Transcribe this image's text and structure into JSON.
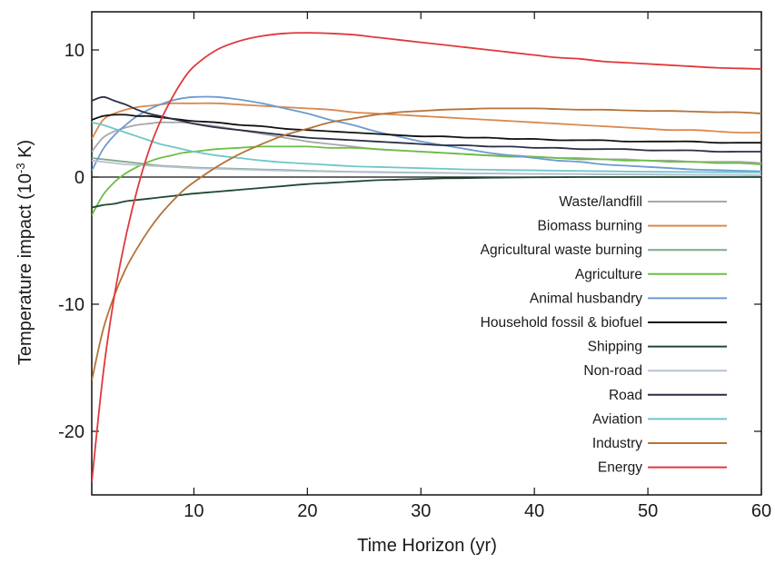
{
  "chart_data": {
    "type": "line",
    "xlabel": "Time Horizon (yr)",
    "ylabel_main": "Temperature impact (10",
    "ylabel_exp": "-3",
    "ylabel_tail": " K)",
    "xlim": [
      1,
      60
    ],
    "ylim": [
      -25,
      13
    ],
    "x_ticks": [
      10,
      20,
      30,
      40,
      50,
      60
    ],
    "y_ticks": [
      -20,
      -10,
      0,
      10
    ],
    "zero_line": true,
    "legend_position": "bottom-right",
    "x": [
      1,
      2,
      3,
      4,
      5,
      6,
      7,
      8,
      9,
      10,
      12,
      14,
      16,
      18,
      20,
      22,
      24,
      26,
      28,
      30,
      32,
      34,
      36,
      38,
      40,
      42,
      44,
      46,
      48,
      50,
      52,
      54,
      56,
      58,
      60
    ],
    "series": [
      {
        "name": "Waste/landfill",
        "color": "#a8a8a8",
        "values": [
          2.0,
          3.1,
          3.6,
          3.9,
          4.1,
          4.2,
          4.3,
          4.3,
          4.3,
          4.2,
          4.0,
          3.7,
          3.4,
          3.1,
          2.8,
          2.6,
          2.4,
          2.2,
          2.1,
          2.0,
          1.9,
          1.8,
          1.7,
          1.7,
          1.6,
          1.5,
          1.5,
          1.4,
          1.4,
          1.3,
          1.3,
          1.2,
          1.2,
          1.2,
          1.1
        ]
      },
      {
        "name": "Biomass burning",
        "color": "#d9894f",
        "values": [
          3.0,
          4.5,
          5.0,
          5.3,
          5.5,
          5.6,
          5.7,
          5.8,
          5.8,
          5.8,
          5.8,
          5.7,
          5.6,
          5.5,
          5.4,
          5.3,
          5.1,
          5.0,
          4.9,
          4.8,
          4.7,
          4.6,
          4.5,
          4.4,
          4.3,
          4.2,
          4.1,
          4.0,
          3.9,
          3.8,
          3.7,
          3.7,
          3.6,
          3.5,
          3.5
        ]
      },
      {
        "name": "Agricultural waste burning",
        "color": "#7fa888",
        "values": [
          1.5,
          1.4,
          1.3,
          1.2,
          1.1,
          1.0,
          0.9,
          0.85,
          0.8,
          0.75,
          0.7,
          0.65,
          0.6,
          0.55,
          0.5,
          0.45,
          0.42,
          0.4,
          0.37,
          0.35,
          0.33,
          0.3,
          0.28,
          0.27,
          0.25,
          0.24,
          0.23,
          0.22,
          0.21,
          0.2,
          0.19,
          0.18,
          0.17,
          0.16,
          0.15
        ]
      },
      {
        "name": "Agriculture",
        "color": "#6cbe45",
        "values": [
          -3.0,
          -1.4,
          -0.4,
          0.3,
          0.8,
          1.2,
          1.5,
          1.7,
          1.9,
          2.0,
          2.2,
          2.3,
          2.4,
          2.4,
          2.4,
          2.3,
          2.3,
          2.2,
          2.1,
          2.0,
          1.9,
          1.8,
          1.7,
          1.6,
          1.6,
          1.5,
          1.4,
          1.4,
          1.3,
          1.3,
          1.2,
          1.2,
          1.1,
          1.1,
          1.0
        ]
      },
      {
        "name": "Animal husbandry",
        "color": "#6b9bd1",
        "values": [
          0.5,
          2.2,
          3.3,
          4.1,
          4.8,
          5.3,
          5.7,
          6.0,
          6.2,
          6.3,
          6.3,
          6.1,
          5.8,
          5.4,
          5.0,
          4.5,
          4.1,
          3.6,
          3.2,
          2.8,
          2.5,
          2.2,
          1.9,
          1.7,
          1.5,
          1.3,
          1.2,
          1.0,
          0.9,
          0.8,
          0.7,
          0.6,
          0.55,
          0.5,
          0.45
        ]
      },
      {
        "name": "Household fossil & biofuel",
        "color": "#111111",
        "values": [
          4.5,
          4.8,
          4.9,
          4.9,
          4.8,
          4.8,
          4.7,
          4.6,
          4.5,
          4.4,
          4.3,
          4.1,
          4.0,
          3.8,
          3.7,
          3.6,
          3.5,
          3.4,
          3.3,
          3.2,
          3.2,
          3.1,
          3.1,
          3.0,
          3.0,
          2.9,
          2.9,
          2.9,
          2.8,
          2.8,
          2.8,
          2.8,
          2.7,
          2.7,
          2.7
        ]
      },
      {
        "name": "Shipping",
        "color": "#1f4a32",
        "values": [
          -2.4,
          -2.2,
          -2.1,
          -1.9,
          -1.8,
          -1.7,
          -1.6,
          -1.5,
          -1.4,
          -1.3,
          -1.15,
          -1.0,
          -0.85,
          -0.7,
          -0.55,
          -0.45,
          -0.35,
          -0.25,
          -0.2,
          -0.15,
          -0.1,
          -0.08,
          -0.05,
          -0.03,
          -0.02,
          -0.01,
          0.0,
          0.0,
          0.0,
          0.0,
          0.0,
          0.0,
          0.0,
          0.0,
          0.0
        ]
      },
      {
        "name": "Non-road",
        "color": "#b8c0d4",
        "values": [
          1.3,
          1.2,
          1.1,
          1.0,
          0.95,
          0.9,
          0.85,
          0.8,
          0.75,
          0.7,
          0.65,
          0.6,
          0.55,
          0.5,
          0.46,
          0.43,
          0.4,
          0.37,
          0.35,
          0.33,
          0.31,
          0.3,
          0.28,
          0.27,
          0.26,
          0.25,
          0.24,
          0.23,
          0.22,
          0.21,
          0.2,
          0.19,
          0.18,
          0.17,
          0.16
        ]
      },
      {
        "name": "Road",
        "color": "#2a2f45",
        "values": [
          6.0,
          6.3,
          6.0,
          5.7,
          5.3,
          5.0,
          4.8,
          4.6,
          4.4,
          4.2,
          3.9,
          3.7,
          3.5,
          3.3,
          3.1,
          3.0,
          2.9,
          2.8,
          2.7,
          2.6,
          2.5,
          2.5,
          2.4,
          2.4,
          2.3,
          2.3,
          2.2,
          2.2,
          2.2,
          2.1,
          2.1,
          2.1,
          2.0,
          2.0,
          2.0
        ]
      },
      {
        "name": "Aviation",
        "color": "#6fc6c8",
        "values": [
          4.3,
          4.1,
          3.8,
          3.5,
          3.2,
          2.9,
          2.6,
          2.4,
          2.2,
          2.0,
          1.7,
          1.5,
          1.3,
          1.15,
          1.05,
          0.95,
          0.85,
          0.8,
          0.75,
          0.7,
          0.65,
          0.6,
          0.58,
          0.55,
          0.53,
          0.5,
          0.48,
          0.46,
          0.44,
          0.42,
          0.41,
          0.4,
          0.39,
          0.38,
          0.37
        ]
      },
      {
        "name": "Industry",
        "color": "#b5733a",
        "values": [
          -16.0,
          -12.0,
          -9.3,
          -7.2,
          -5.6,
          -4.2,
          -3.0,
          -2.0,
          -1.1,
          -0.4,
          0.8,
          1.8,
          2.6,
          3.3,
          3.8,
          4.3,
          4.6,
          4.9,
          5.1,
          5.2,
          5.3,
          5.35,
          5.4,
          5.4,
          5.4,
          5.35,
          5.3,
          5.3,
          5.25,
          5.2,
          5.2,
          5.15,
          5.1,
          5.1,
          5.0
        ]
      },
      {
        "name": "Energy",
        "color": "#e0393b",
        "values": [
          -24.0,
          -15.5,
          -9.3,
          -4.7,
          -1.0,
          2.0,
          4.3,
          6.1,
          7.6,
          8.7,
          10.0,
          10.7,
          11.1,
          11.3,
          11.35,
          11.3,
          11.2,
          11.0,
          10.8,
          10.6,
          10.4,
          10.2,
          10.0,
          9.8,
          9.6,
          9.4,
          9.3,
          9.1,
          9.0,
          8.9,
          8.8,
          8.7,
          8.6,
          8.55,
          8.5
        ]
      }
    ]
  }
}
